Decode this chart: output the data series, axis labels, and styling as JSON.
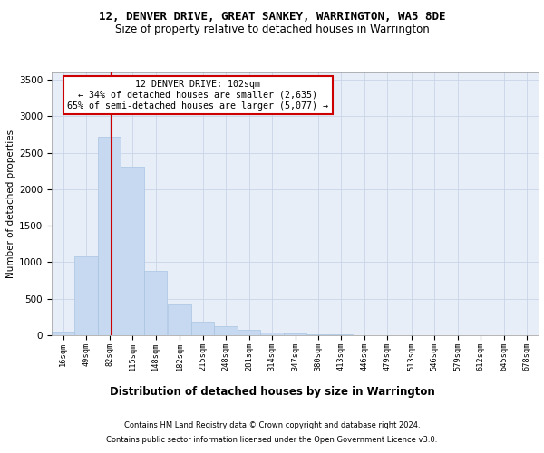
{
  "title": "12, DENVER DRIVE, GREAT SANKEY, WARRINGTON, WA5 8DE",
  "subtitle": "Size of property relative to detached houses in Warrington",
  "xlabel": "Distribution of detached houses by size in Warrington",
  "ylabel": "Number of detached properties",
  "bins": [
    "16sqm",
    "49sqm",
    "82sqm",
    "115sqm",
    "148sqm",
    "182sqm",
    "215sqm",
    "248sqm",
    "281sqm",
    "314sqm",
    "347sqm",
    "380sqm",
    "413sqm",
    "446sqm",
    "479sqm",
    "513sqm",
    "546sqm",
    "579sqm",
    "612sqm",
    "645sqm",
    "678sqm"
  ],
  "bin_left_edges": [
    16,
    49,
    82,
    115,
    148,
    182,
    215,
    248,
    281,
    314,
    347,
    380,
    413,
    446,
    479,
    513,
    546,
    579,
    612,
    645,
    678
  ],
  "bin_width": 33,
  "values": [
    50,
    1080,
    2720,
    2310,
    880,
    420,
    185,
    120,
    70,
    40,
    20,
    10,
    8,
    5,
    3,
    2,
    1,
    1,
    0,
    0,
    0
  ],
  "bar_color": "#c6d9f1",
  "bar_edge_color": "#a8c4e0",
  "grid_color": "#c8d4e8",
  "property_line_x": 102,
  "annotation_line1": "12 DENVER DRIVE: 102sqm",
  "annotation_line2": "← 34% of detached houses are smaller (2,635)",
  "annotation_line3": "65% of semi-detached houses are larger (5,077) →",
  "ann_edge_color": "#cc0000",
  "footnote1": "Contains HM Land Registry data © Crown copyright and database right 2024.",
  "footnote2": "Contains public sector information licensed under the Open Government Licence v3.0.",
  "ylim": [
    0,
    3600
  ],
  "yticks": [
    0,
    500,
    1000,
    1500,
    2000,
    2500,
    3000,
    3500
  ],
  "bg_color": "#e8eef8",
  "title_fontsize": 9,
  "subtitle_fontsize": 8.5,
  "ylabel_fontsize": 7.5,
  "xlabel_fontsize": 8.5,
  "ytick_fontsize": 7.5,
  "xtick_fontsize": 6.2,
  "footnote_fontsize": 6.0
}
